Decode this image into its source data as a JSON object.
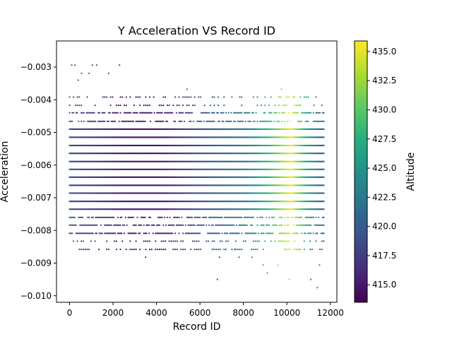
{
  "chart_data": {
    "type": "scatter",
    "title": "Y Acceleration VS Record ID",
    "xlabel": "Record ID",
    "ylabel": "Acceleration",
    "xlim": [
      -600,
      12300
    ],
    "ylim": [
      -0.0102,
      -0.0022
    ],
    "x_ticks": [
      0,
      2000,
      4000,
      6000,
      8000,
      10000,
      12000
    ],
    "x_tick_labels": [
      "0",
      "2000",
      "4000",
      "6000",
      "8000",
      "10000",
      "12000"
    ],
    "y_ticks": [
      -0.01,
      -0.009,
      -0.008,
      -0.007,
      -0.006,
      -0.005,
      -0.004,
      -0.003
    ],
    "y_tick_labels": [
      "−0.010",
      "−0.009",
      "−0.008",
      "−0.007",
      "−0.006",
      "−0.005",
      "−0.004",
      "−0.003"
    ],
    "grid": false,
    "legend": "none",
    "colorbar": {
      "label": "Altitude",
      "colormap": "viridis",
      "range": [
        413.5,
        435.9
      ],
      "ticks": [
        415.0,
        417.5,
        420.0,
        422.5,
        425.0,
        427.5,
        430.0,
        432.5,
        435.0
      ],
      "tick_labels": [
        "415.0",
        "417.5",
        "420.0",
        "422.5",
        "425.0",
        "427.5",
        "430.0",
        "432.5",
        "435.0"
      ]
    },
    "record_id_range": [
      0,
      11700
    ],
    "quantization_step": 0.000245,
    "dense_levels": [
      -0.0049,
      -0.00515,
      -0.0054,
      -0.00564,
      -0.00589,
      -0.00613,
      -0.00637,
      -0.00662,
      -0.00686,
      -0.00711,
      -0.00735
    ],
    "medium_levels": [
      -0.0044,
      -0.00466,
      -0.0076,
      -0.00784,
      -0.00809
    ],
    "sparse_levels": [
      -0.00417,
      -0.00392,
      -0.00833,
      -0.00858
    ],
    "outliers": [
      {
        "x": 400,
        "y": -0.0034,
        "altitude": 421
      },
      {
        "x": 100,
        "y": -0.00294,
        "altitude": 420
      },
      {
        "x": 250,
        "y": -0.00294,
        "altitude": 419
      },
      {
        "x": 550,
        "y": -0.00319,
        "altitude": 420
      },
      {
        "x": 1050,
        "y": -0.00294,
        "altitude": 419
      },
      {
        "x": 1250,
        "y": -0.00294,
        "altitude": 418
      },
      {
        "x": 2300,
        "y": -0.00294,
        "altitude": 417
      },
      {
        "x": 900,
        "y": -0.00319,
        "altitude": 418
      },
      {
        "x": 1800,
        "y": -0.00319,
        "altitude": 417
      },
      {
        "x": 9750,
        "y": -0.00368,
        "altitude": 432
      },
      {
        "x": 10300,
        "y": -0.00392,
        "altitude": 433
      },
      {
        "x": 5400,
        "y": -0.00368,
        "altitude": 420
      },
      {
        "x": 6900,
        "y": -0.00882,
        "altitude": 419
      },
      {
        "x": 7800,
        "y": -0.00882,
        "altitude": 420
      },
      {
        "x": 3500,
        "y": -0.00882,
        "altitude": 416
      },
      {
        "x": 6800,
        "y": -0.0095,
        "altitude": 420
      },
      {
        "x": 9100,
        "y": -0.0093,
        "altitude": 428
      },
      {
        "x": 10100,
        "y": -0.0095,
        "altitude": 434
      },
      {
        "x": 11100,
        "y": -0.0095,
        "altitude": 422
      },
      {
        "x": 11400,
        "y": -0.00975,
        "altitude": 421
      },
      {
        "x": 8900,
        "y": -0.00906,
        "altitude": 427
      },
      {
        "x": 9600,
        "y": -0.00906,
        "altitude": 433
      },
      {
        "x": 11500,
        "y": -0.00906,
        "altitude": 423
      },
      {
        "x": 7600,
        "y": -0.00858,
        "altitude": 421
      },
      {
        "x": 8400,
        "y": -0.00882,
        "altitude": 424
      }
    ]
  }
}
